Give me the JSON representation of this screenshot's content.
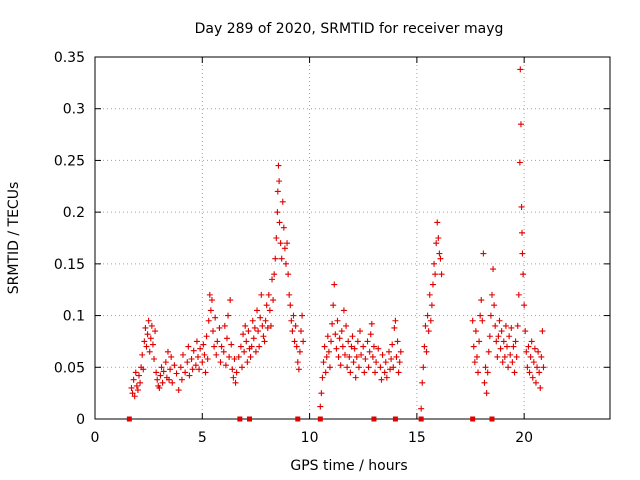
{
  "chart_data": {
    "type": "scatter",
    "title": "Day 289 of 2020, SRMTID for receiver mayg",
    "xlabel": "GPS time / hours",
    "ylabel": "SRMTID / TECUs",
    "xlim": [
      0,
      24
    ],
    "ylim": [
      0,
      0.35
    ],
    "xticks": [
      0,
      5,
      10,
      15,
      20
    ],
    "xtick_labels": [
      "0",
      "5",
      "10",
      "15",
      "20"
    ],
    "yticks": [
      0,
      0.05,
      0.1,
      0.15,
      0.2,
      0.25,
      0.3,
      0.35
    ],
    "ytick_labels": [
      "0",
      "0.05",
      "0.1",
      "0.15",
      "0.2",
      "0.25",
      "0.3",
      "0.35"
    ],
    "grid": true,
    "series": [
      {
        "name": "SRMTID",
        "color": "#e00000",
        "marker": "plus",
        "points": [
          [
            1.7,
            0.03
          ],
          [
            1.75,
            0.025
          ],
          [
            1.8,
            0.038
          ],
          [
            1.85,
            0.022
          ],
          [
            1.9,
            0.045
          ],
          [
            1.95,
            0.032
          ],
          [
            2.0,
            0.028
          ],
          [
            2.05,
            0.042
          ],
          [
            2.1,
            0.035
          ],
          [
            2.15,
            0.05
          ],
          [
            2.2,
            0.062
          ],
          [
            2.25,
            0.048
          ],
          [
            2.3,
            0.075
          ],
          [
            2.35,
            0.088
          ],
          [
            2.4,
            0.07
          ],
          [
            2.45,
            0.082
          ],
          [
            2.5,
            0.095
          ],
          [
            2.55,
            0.065
          ],
          [
            2.6,
            0.078
          ],
          [
            2.65,
            0.09
          ],
          [
            2.7,
            0.072
          ],
          [
            2.75,
            0.058
          ],
          [
            2.8,
            0.085
          ],
          [
            2.85,
            0.045
          ],
          [
            2.9,
            0.038
          ],
          [
            2.95,
            0.032
          ],
          [
            3.0,
            0.03
          ],
          [
            3.05,
            0.042
          ],
          [
            3.1,
            0.05
          ],
          [
            3.15,
            0.035
          ],
          [
            3.2,
            0.046
          ],
          [
            3.3,
            0.055
          ],
          [
            3.35,
            0.04
          ],
          [
            3.4,
            0.065
          ],
          [
            3.45,
            0.038
          ],
          [
            3.5,
            0.048
          ],
          [
            3.55,
            0.06
          ],
          [
            3.6,
            0.035
          ],
          [
            3.7,
            0.052
          ],
          [
            3.8,
            0.044
          ],
          [
            3.9,
            0.028
          ],
          [
            4.0,
            0.05
          ],
          [
            4.05,
            0.038
          ],
          [
            4.1,
            0.062
          ],
          [
            4.2,
            0.045
          ],
          [
            4.3,
            0.055
          ],
          [
            4.35,
            0.07
          ],
          [
            4.4,
            0.042
          ],
          [
            4.5,
            0.058
          ],
          [
            4.55,
            0.048
          ],
          [
            4.6,
            0.066
          ],
          [
            4.7,
            0.052
          ],
          [
            4.75,
            0.075
          ],
          [
            4.8,
            0.06
          ],
          [
            4.85,
            0.048
          ],
          [
            4.9,
            0.068
          ],
          [
            5.0,
            0.055
          ],
          [
            5.05,
            0.072
          ],
          [
            5.1,
            0.062
          ],
          [
            5.15,
            0.045
          ],
          [
            5.2,
            0.08
          ],
          [
            5.25,
            0.058
          ],
          [
            5.3,
            0.095
          ],
          [
            5.35,
            0.12
          ],
          [
            5.4,
            0.105
          ],
          [
            5.45,
            0.115
          ],
          [
            5.5,
            0.085
          ],
          [
            5.55,
            0.07
          ],
          [
            5.6,
            0.098
          ],
          [
            5.65,
            0.062
          ],
          [
            5.7,
            0.075
          ],
          [
            5.8,
            0.088
          ],
          [
            5.85,
            0.055
          ],
          [
            5.9,
            0.07
          ],
          [
            6.0,
            0.065
          ],
          [
            6.05,
            0.09
          ],
          [
            6.1,
            0.052
          ],
          [
            6.15,
            0.078
          ],
          [
            6.2,
            0.1
          ],
          [
            6.25,
            0.06
          ],
          [
            6.3,
            0.115
          ],
          [
            6.35,
            0.072
          ],
          [
            6.4,
            0.048
          ],
          [
            6.45,
            0.04
          ],
          [
            6.5,
            0.058
          ],
          [
            6.55,
            0.035
          ],
          [
            6.6,
            0.045
          ],
          [
            6.7,
            0.06
          ],
          [
            6.8,
            0.07
          ],
          [
            6.85,
            0.05
          ],
          [
            6.9,
            0.082
          ],
          [
            6.95,
            0.065
          ],
          [
            7.0,
            0.09
          ],
          [
            7.05,
            0.075
          ],
          [
            7.1,
            0.055
          ],
          [
            7.15,
            0.085
          ],
          [
            7.2,
            0.068
          ],
          [
            7.25,
            0.06
          ],
          [
            7.3,
            0.07
          ],
          [
            7.35,
            0.095
          ],
          [
            7.4,
            0.078
          ],
          [
            7.45,
            0.088
          ],
          [
            7.5,
            0.065
          ],
          [
            7.55,
            0.105
          ],
          [
            7.6,
            0.085
          ],
          [
            7.65,
            0.07
          ],
          [
            7.7,
            0.098
          ],
          [
            7.75,
            0.12
          ],
          [
            7.8,
            0.09
          ],
          [
            7.85,
            0.08
          ],
          [
            7.9,
            0.075
          ],
          [
            7.95,
            0.095
          ],
          [
            8.0,
            0.11
          ],
          [
            8.05,
            0.088
          ],
          [
            8.1,
            0.12
          ],
          [
            8.15,
            0.105
          ],
          [
            8.2,
            0.09
          ],
          [
            8.25,
            0.135
          ],
          [
            8.3,
            0.115
          ],
          [
            8.35,
            0.14
          ],
          [
            8.4,
            0.155
          ],
          [
            8.45,
            0.175
          ],
          [
            8.5,
            0.2
          ],
          [
            8.52,
            0.22
          ],
          [
            8.55,
            0.245
          ],
          [
            8.58,
            0.23
          ],
          [
            8.6,
            0.19
          ],
          [
            8.65,
            0.17
          ],
          [
            8.7,
            0.155
          ],
          [
            8.75,
            0.21
          ],
          [
            8.8,
            0.185
          ],
          [
            8.85,
            0.165
          ],
          [
            8.9,
            0.15
          ],
          [
            8.95,
            0.17
          ],
          [
            9.0,
            0.14
          ],
          [
            9.05,
            0.12
          ],
          [
            9.1,
            0.11
          ],
          [
            9.15,
            0.095
          ],
          [
            9.2,
            0.085
          ],
          [
            9.25,
            0.1
          ],
          [
            9.3,
            0.075
          ],
          [
            9.35,
            0.09
          ],
          [
            9.4,
            0.07
          ],
          [
            9.45,
            0.055
          ],
          [
            9.5,
            0.048
          ],
          [
            9.55,
            0.065
          ],
          [
            9.6,
            0.085
          ],
          [
            9.65,
            0.1
          ],
          [
            9.7,
            0.075
          ],
          [
            10.5,
            0.012
          ],
          [
            10.55,
            0.025
          ],
          [
            10.6,
            0.04
          ],
          [
            10.65,
            0.055
          ],
          [
            10.7,
            0.07
          ],
          [
            10.75,
            0.045
          ],
          [
            10.8,
            0.06
          ],
          [
            10.85,
            0.08
          ],
          [
            10.9,
            0.065
          ],
          [
            10.95,
            0.05
          ],
          [
            11.0,
            0.075
          ],
          [
            11.05,
            0.092
          ],
          [
            11.1,
            0.11
          ],
          [
            11.15,
            0.13
          ],
          [
            11.2,
            0.082
          ],
          [
            11.25,
            0.068
          ],
          [
            11.3,
            0.095
          ],
          [
            11.35,
            0.06
          ],
          [
            11.4,
            0.078
          ],
          [
            11.45,
            0.052
          ],
          [
            11.5,
            0.085
          ],
          [
            11.55,
            0.07
          ],
          [
            11.6,
            0.105
          ],
          [
            11.65,
            0.062
          ],
          [
            11.7,
            0.09
          ],
          [
            11.75,
            0.05
          ],
          [
            11.8,
            0.075
          ],
          [
            11.85,
            0.06
          ],
          [
            11.9,
            0.045
          ],
          [
            11.95,
            0.07
          ],
          [
            12.0,
            0.08
          ],
          [
            12.05,
            0.055
          ],
          [
            12.1,
            0.068
          ],
          [
            12.15,
            0.04
          ],
          [
            12.2,
            0.06
          ],
          [
            12.25,
            0.075
          ],
          [
            12.3,
            0.05
          ],
          [
            12.35,
            0.085
          ],
          [
            12.4,
            0.062
          ],
          [
            12.5,
            0.07
          ],
          [
            12.55,
            0.045
          ],
          [
            12.6,
            0.058
          ],
          [
            12.7,
            0.075
          ],
          [
            12.75,
            0.05
          ],
          [
            12.8,
            0.065
          ],
          [
            12.85,
            0.082
          ],
          [
            12.9,
            0.092
          ],
          [
            12.95,
            0.06
          ],
          [
            13.0,
            0.07
          ],
          [
            13.05,
            0.045
          ],
          [
            13.1,
            0.055
          ],
          [
            13.2,
            0.068
          ],
          [
            13.3,
            0.05
          ],
          [
            13.35,
            0.038
          ],
          [
            13.4,
            0.062
          ],
          [
            13.5,
            0.045
          ],
          [
            13.55,
            0.055
          ],
          [
            13.6,
            0.04
          ],
          [
            13.7,
            0.065
          ],
          [
            13.75,
            0.048
          ],
          [
            13.8,
            0.058
          ],
          [
            13.85,
            0.072
          ],
          [
            13.9,
            0.05
          ],
          [
            13.95,
            0.088
          ],
          [
            14.0,
            0.095
          ],
          [
            14.05,
            0.06
          ],
          [
            14.1,
            0.075
          ],
          [
            14.15,
            0.045
          ],
          [
            14.2,
            0.055
          ],
          [
            14.25,
            0.065
          ],
          [
            15.2,
            0.01
          ],
          [
            15.25,
            0.035
          ],
          [
            15.3,
            0.05
          ],
          [
            15.35,
            0.07
          ],
          [
            15.4,
            0.09
          ],
          [
            15.45,
            0.065
          ],
          [
            15.5,
            0.1
          ],
          [
            15.55,
            0.085
          ],
          [
            15.6,
            0.12
          ],
          [
            15.65,
            0.095
          ],
          [
            15.7,
            0.11
          ],
          [
            15.75,
            0.13
          ],
          [
            15.8,
            0.15
          ],
          [
            15.85,
            0.14
          ],
          [
            15.9,
            0.17
          ],
          [
            15.95,
            0.19
          ],
          [
            16.0,
            0.175
          ],
          [
            16.05,
            0.16
          ],
          [
            16.1,
            0.155
          ],
          [
            16.15,
            0.14
          ],
          [
            17.6,
            0.095
          ],
          [
            17.65,
            0.07
          ],
          [
            17.7,
            0.055
          ],
          [
            17.75,
            0.085
          ],
          [
            17.8,
            0.06
          ],
          [
            17.85,
            0.045
          ],
          [
            17.9,
            0.075
          ],
          [
            17.95,
            0.1
          ],
          [
            18.0,
            0.115
          ],
          [
            18.05,
            0.095
          ],
          [
            18.1,
            0.16
          ],
          [
            18.15,
            0.035
          ],
          [
            18.2,
            0.05
          ],
          [
            18.25,
            0.025
          ],
          [
            18.3,
            0.045
          ],
          [
            18.35,
            0.065
          ],
          [
            18.4,
            0.08
          ],
          [
            18.45,
            0.1
          ],
          [
            18.5,
            0.12
          ],
          [
            18.55,
            0.145
          ],
          [
            18.6,
            0.11
          ],
          [
            18.65,
            0.09
          ],
          [
            18.7,
            0.075
          ],
          [
            18.75,
            0.06
          ],
          [
            18.8,
            0.08
          ],
          [
            18.85,
            0.095
          ],
          [
            18.9,
            0.068
          ],
          [
            18.95,
            0.085
          ],
          [
            19.0,
            0.055
          ],
          [
            19.05,
            0.075
          ],
          [
            19.1,
            0.06
          ],
          [
            19.15,
            0.09
          ],
          [
            19.2,
            0.07
          ],
          [
            19.25,
            0.05
          ],
          [
            19.3,
            0.08
          ],
          [
            19.35,
            0.062
          ],
          [
            19.4,
            0.088
          ],
          [
            19.45,
            0.055
          ],
          [
            19.5,
            0.07
          ],
          [
            19.55,
            0.045
          ],
          [
            19.6,
            0.075
          ],
          [
            19.65,
            0.06
          ],
          [
            19.7,
            0.09
          ],
          [
            19.75,
            0.12
          ],
          [
            19.8,
            0.248
          ],
          [
            19.82,
            0.338
          ],
          [
            19.85,
            0.285
          ],
          [
            19.88,
            0.205
          ],
          [
            19.9,
            0.18
          ],
          [
            19.92,
            0.16
          ],
          [
            19.95,
            0.14
          ],
          [
            20.0,
            0.11
          ],
          [
            20.05,
            0.085
          ],
          [
            20.1,
            0.065
          ],
          [
            20.15,
            0.05
          ],
          [
            20.2,
            0.07
          ],
          [
            20.25,
            0.045
          ],
          [
            20.3,
            0.06
          ],
          [
            20.35,
            0.075
          ],
          [
            20.4,
            0.04
          ],
          [
            20.45,
            0.055
          ],
          [
            20.5,
            0.068
          ],
          [
            20.55,
            0.035
          ],
          [
            20.6,
            0.05
          ],
          [
            20.65,
            0.065
          ],
          [
            20.7,
            0.045
          ],
          [
            20.75,
            0.03
          ],
          [
            20.8,
            0.06
          ],
          [
            20.85,
            0.085
          ],
          [
            20.9,
            0.05
          ]
        ]
      }
    ],
    "zero_markers_x": [
      1.6,
      6.75,
      7.2,
      9.45,
      10.5,
      13.0,
      14.0,
      15.2,
      17.6,
      18.5
    ]
  }
}
